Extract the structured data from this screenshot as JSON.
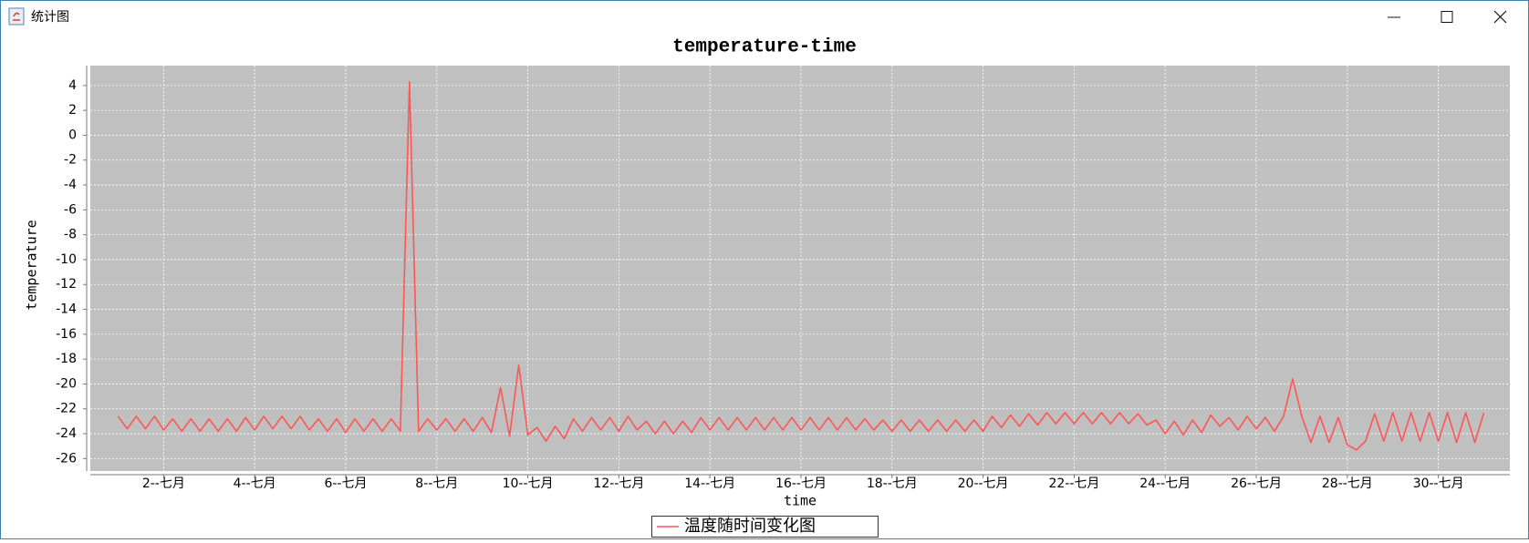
{
  "window": {
    "title": "统计图"
  },
  "chart_data": {
    "type": "line",
    "title": "temperature-time",
    "x_label": "time",
    "y_label": "temperature",
    "x": [
      1.0,
      1.2,
      1.4,
      1.6,
      1.8,
      2.0,
      2.2,
      2.4,
      2.6,
      2.8,
      3.0,
      3.2,
      3.4,
      3.6,
      3.8,
      4.0,
      4.2,
      4.4,
      4.6,
      4.8,
      5.0,
      5.2,
      5.4,
      5.6,
      5.8,
      6.0,
      6.2,
      6.4,
      6.6,
      6.8,
      7.0,
      7.2,
      7.4,
      7.6,
      7.8,
      8.0,
      8.2,
      8.4,
      8.6,
      8.8,
      9.0,
      9.2,
      9.4,
      9.6,
      9.8,
      10.0,
      10.2,
      10.4,
      10.6,
      10.8,
      11.0,
      11.2,
      11.4,
      11.6,
      11.8,
      12.0,
      12.2,
      12.4,
      12.6,
      12.8,
      13.0,
      13.2,
      13.4,
      13.6,
      13.8,
      14.0,
      14.2,
      14.4,
      14.6,
      14.8,
      15.0,
      15.2,
      15.4,
      15.6,
      15.8,
      16.0,
      16.2,
      16.4,
      16.6,
      16.8,
      17.0,
      17.2,
      17.4,
      17.6,
      17.8,
      18.0,
      18.2,
      18.4,
      18.6,
      18.8,
      19.0,
      19.2,
      19.4,
      19.6,
      19.8,
      20.0,
      20.2,
      20.4,
      20.6,
      20.8,
      21.0,
      21.2,
      21.4,
      21.6,
      21.8,
      22.0,
      22.2,
      22.4,
      22.6,
      22.8,
      23.0,
      23.2,
      23.4,
      23.6,
      23.8,
      24.0,
      24.2,
      24.4,
      24.6,
      24.8,
      25.0,
      25.2,
      25.4,
      25.6,
      25.8,
      26.0,
      26.2,
      26.4,
      26.6,
      26.8,
      27.0,
      27.2,
      27.4,
      27.6,
      27.8,
      28.0,
      28.2,
      28.4,
      28.6,
      28.8,
      29.0,
      29.2,
      29.4,
      29.6,
      29.8,
      30.0,
      30.2,
      30.4,
      30.6,
      30.8,
      31.0
    ],
    "series": [
      {
        "name": "温度随时间变化图",
        "color": "#ff5555",
        "values": [
          -22.6,
          -23.6,
          -22.6,
          -23.6,
          -22.6,
          -23.7,
          -22.8,
          -23.8,
          -22.8,
          -23.8,
          -22.8,
          -23.8,
          -22.8,
          -23.8,
          -22.7,
          -23.7,
          -22.6,
          -23.6,
          -22.6,
          -23.6,
          -22.6,
          -23.7,
          -22.8,
          -23.8,
          -22.8,
          -23.9,
          -22.8,
          -23.8,
          -22.8,
          -23.8,
          -22.8,
          -23.8,
          4.3,
          -23.8,
          -22.8,
          -23.7,
          -22.8,
          -23.8,
          -22.8,
          -23.8,
          -22.7,
          -23.9,
          -20.3,
          -24.2,
          -18.5,
          -24.1,
          -23.5,
          -24.6,
          -23.4,
          -24.4,
          -22.8,
          -23.8,
          -22.7,
          -23.7,
          -22.7,
          -23.8,
          -22.6,
          -23.7,
          -23.0,
          -24.0,
          -23.0,
          -24.0,
          -23.0,
          -23.9,
          -22.7,
          -23.7,
          -22.7,
          -23.7,
          -22.7,
          -23.7,
          -22.7,
          -23.7,
          -22.7,
          -23.7,
          -22.7,
          -23.7,
          -22.7,
          -23.7,
          -22.7,
          -23.7,
          -22.7,
          -23.7,
          -22.8,
          -23.7,
          -22.9,
          -23.8,
          -22.9,
          -23.8,
          -22.9,
          -23.8,
          -22.9,
          -23.8,
          -22.9,
          -23.8,
          -22.9,
          -23.8,
          -22.6,
          -23.5,
          -22.5,
          -23.4,
          -22.4,
          -23.3,
          -22.3,
          -23.2,
          -22.3,
          -23.2,
          -22.3,
          -23.2,
          -22.3,
          -23.2,
          -22.3,
          -23.2,
          -22.4,
          -23.3,
          -22.9,
          -24.0,
          -23.0,
          -24.1,
          -22.9,
          -23.9,
          -22.5,
          -23.4,
          -22.7,
          -23.7,
          -22.6,
          -23.6,
          -22.7,
          -23.8,
          -22.6,
          -19.6,
          -22.6,
          -24.7,
          -22.6,
          -24.7,
          -22.7,
          -24.9,
          -25.3,
          -24.6,
          -22.4,
          -24.6,
          -22.3,
          -24.6,
          -22.3,
          -24.6,
          -22.3,
          -24.6,
          -22.3,
          -24.7,
          -22.3,
          -24.7,
          -22.3
        ]
      }
    ],
    "xlim": [
      0.39,
      31.57
    ],
    "ylim": [
      -27,
      5.6
    ],
    "xticks": [
      {
        "value": 2,
        "label": "2--七月"
      },
      {
        "value": 4,
        "label": "4--七月"
      },
      {
        "value": 6,
        "label": "6--七月"
      },
      {
        "value": 8,
        "label": "8--七月"
      },
      {
        "value": 10,
        "label": "10--七月"
      },
      {
        "value": 12,
        "label": "12--七月"
      },
      {
        "value": 14,
        "label": "14--七月"
      },
      {
        "value": 16,
        "label": "16--七月"
      },
      {
        "value": 18,
        "label": "18--七月"
      },
      {
        "value": 20,
        "label": "20--七月"
      },
      {
        "value": 22,
        "label": "22--七月"
      },
      {
        "value": 24,
        "label": "24--七月"
      },
      {
        "value": 26,
        "label": "26--七月"
      },
      {
        "value": 28,
        "label": "28--七月"
      },
      {
        "value": 30,
        "label": "30--七月"
      }
    ],
    "yticks": [
      4,
      2,
      0,
      -2,
      -4,
      -6,
      -8,
      -10,
      -12,
      -14,
      -16,
      -18,
      -20,
      -22,
      -24,
      -26
    ],
    "grid": true,
    "legend": "bottom"
  }
}
